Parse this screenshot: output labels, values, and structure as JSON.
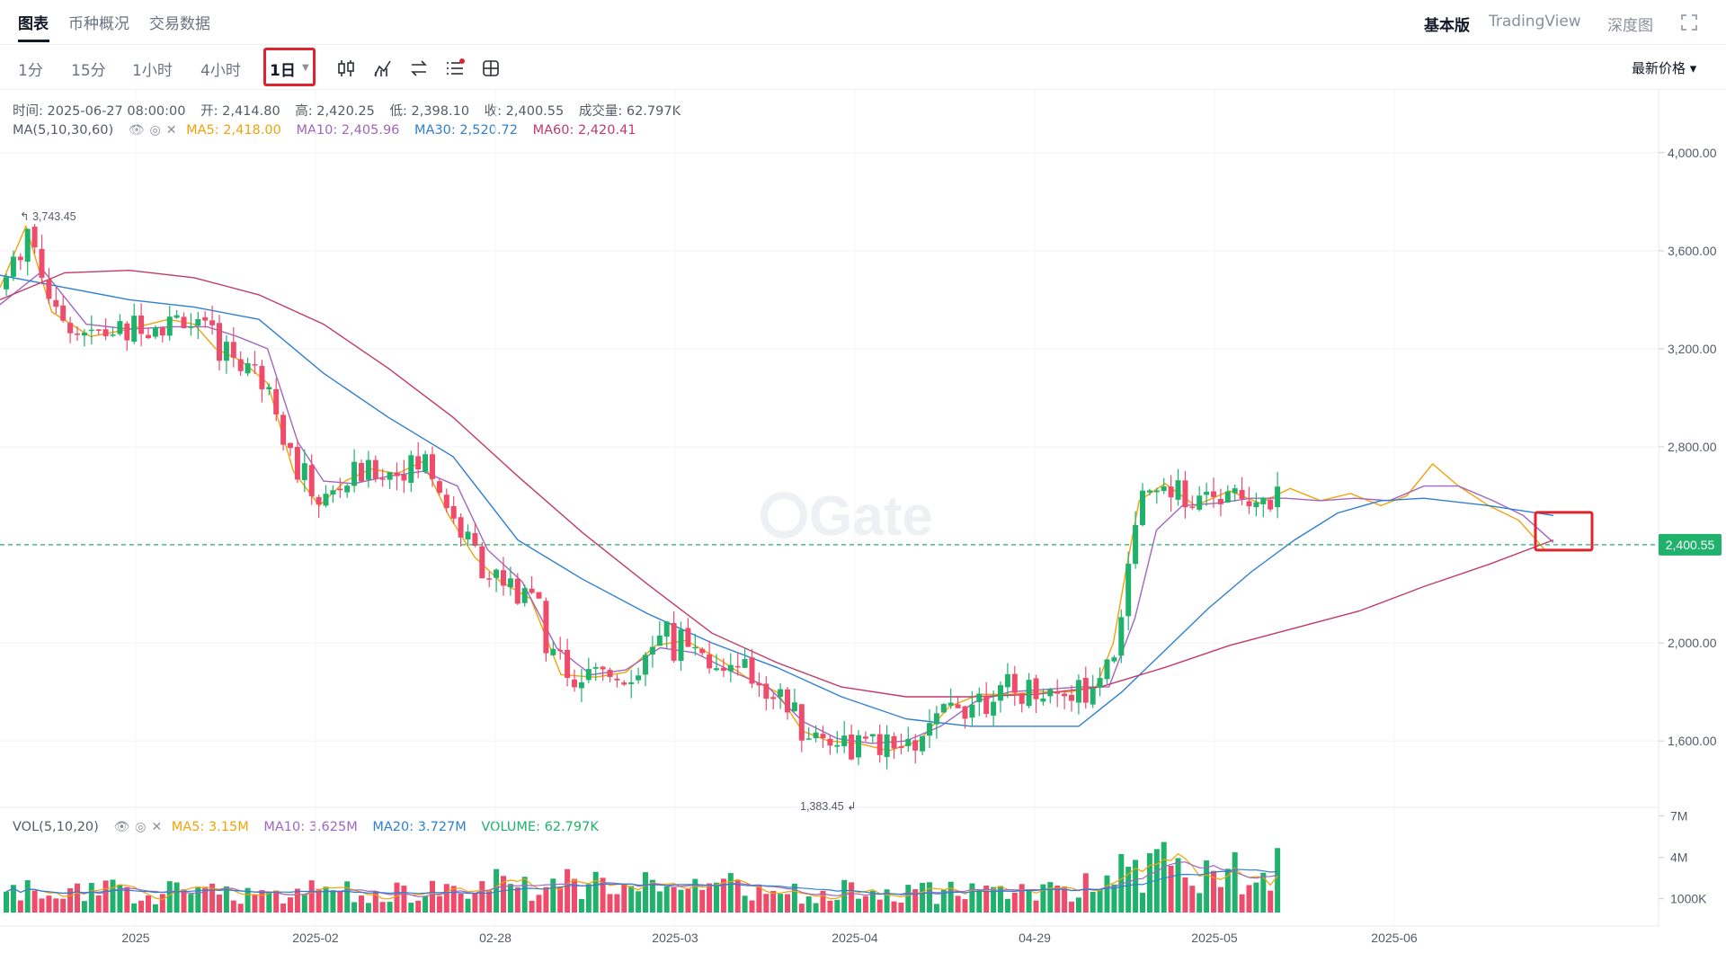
{
  "top_tabs": [
    {
      "label": "图表",
      "active": true
    },
    {
      "label": "币种概况",
      "active": false
    },
    {
      "label": "交易数据",
      "active": false
    }
  ],
  "top_right": [
    {
      "label": "基本版",
      "active": true
    },
    {
      "label": "TradingView",
      "active": false
    },
    {
      "label": "深度图",
      "active": false
    }
  ],
  "intervals": [
    {
      "label": "1分",
      "active": false
    },
    {
      "label": "15分",
      "active": false
    },
    {
      "label": "1小时",
      "active": false
    },
    {
      "label": "4小时",
      "active": false
    },
    {
      "label": "1日",
      "active": true
    }
  ],
  "interval_caret": "▼",
  "price_mode": "最新价格 ▾",
  "ohlc": {
    "time": "时间: 2025-06-27 08:00:00",
    "open": "开: 2,414.80",
    "high": "高: 2,420.25",
    "low": "低: 2,398.10",
    "close": "收: 2,400.55",
    "volume": "成交量: 62.797K"
  },
  "ma_legend": {
    "label": "MA(5,10,30,60)",
    "ma5": "MA5: 2,418.00",
    "ma10": "MA10: 2,405.96",
    "ma30": "MA30: 2,520.72",
    "ma60": "MA60: 2,420.41"
  },
  "vol_legend": {
    "label": "VOL(5,10,20)",
    "ma5": "MA5: 3.15M",
    "ma10": "MA10: 3.625M",
    "ma20": "MA20: 3.727M",
    "volume": "VOLUME: 62.797K"
  },
  "colors": {
    "up": "#20b26c",
    "down": "#ef4b6b",
    "ma5": "#f0a30a",
    "ma10": "#a066c0",
    "ma30": "#2f7fd1",
    "ma60": "#c13a6a",
    "last_price": "#20b26c",
    "highlight": "#e0242f"
  },
  "chart_data": {
    "type": "candlestick",
    "price_axis_ticks": [
      "4,000.00",
      "3,600.00",
      "3,200.00",
      "2,800.00",
      "2,000.00",
      "1,600.00"
    ],
    "price_axis_values": [
      4000,
      3600,
      3200,
      2800,
      2000,
      1600
    ],
    "volume_axis_ticks": [
      "7M",
      "4M",
      "1000K"
    ],
    "volume_axis_values": [
      7,
      4,
      1
    ],
    "x_axis_labels": [
      "2025",
      "2025-02",
      "02-28",
      "2025-03",
      "2025-04",
      "04-29",
      "2025-05",
      "2025-06"
    ],
    "last_price": 2400.55,
    "last_price_label": "2,400.55",
    "max_marker": {
      "value": 3743.45,
      "label": "3,743.45"
    },
    "min_marker": {
      "value": 1383.45,
      "label": "1,383.45"
    },
    "ylim": [
      1340,
      4080
    ],
    "vol_ylim": [
      0,
      7.5
    ],
    "ma_series": [
      {
        "name": "MA5",
        "points": [
          [
            0,
            3450
          ],
          [
            12,
            3700
          ],
          [
            24,
            3350
          ],
          [
            42,
            3250
          ],
          [
            60,
            3280
          ],
          [
            78,
            3320
          ],
          [
            90,
            3300
          ],
          [
            100,
            3200
          ],
          [
            112,
            3150
          ],
          [
            124,
            3060
          ],
          [
            136,
            2700
          ],
          [
            148,
            2560
          ],
          [
            160,
            2660
          ],
          [
            172,
            2710
          ],
          [
            184,
            2690
          ],
          [
            196,
            2740
          ],
          [
            208,
            2520
          ],
          [
            220,
            2350
          ],
          [
            232,
            2250
          ],
          [
            246,
            2180
          ],
          [
            260,
            1870
          ],
          [
            276,
            1860
          ],
          [
            290,
            1880
          ],
          [
            304,
            1990
          ],
          [
            318,
            2010
          ],
          [
            332,
            1940
          ],
          [
            346,
            1860
          ],
          [
            360,
            1800
          ],
          [
            372,
            1640
          ],
          [
            384,
            1600
          ],
          [
            398,
            1590
          ],
          [
            412,
            1560
          ],
          [
            426,
            1600
          ],
          [
            440,
            1740
          ],
          [
            454,
            1790
          ],
          [
            468,
            1790
          ],
          [
            482,
            1800
          ],
          [
            496,
            1800
          ],
          [
            508,
            1820
          ],
          [
            516,
            2000
          ],
          [
            522,
            2300
          ],
          [
            528,
            2580
          ],
          [
            540,
            2650
          ],
          [
            554,
            2560
          ],
          [
            570,
            2620
          ],
          [
            584,
            2570
          ],
          [
            598,
            2630
          ],
          [
            612,
            2580
          ],
          [
            626,
            2610
          ],
          [
            640,
            2560
          ],
          [
            652,
            2600
          ],
          [
            664,
            2730
          ],
          [
            676,
            2640
          ],
          [
            690,
            2560
          ],
          [
            704,
            2500
          ],
          [
            716,
            2380
          ],
          [
            720,
            2380
          ]
        ]
      },
      {
        "name": "MA10",
        "points": [
          [
            0,
            3380
          ],
          [
            20,
            3520
          ],
          [
            40,
            3300
          ],
          [
            60,
            3280
          ],
          [
            80,
            3290
          ],
          [
            96,
            3290
          ],
          [
            110,
            3250
          ],
          [
            124,
            3200
          ],
          [
            138,
            2820
          ],
          [
            150,
            2660
          ],
          [
            164,
            2650
          ],
          [
            180,
            2680
          ],
          [
            196,
            2700
          ],
          [
            212,
            2640
          ],
          [
            226,
            2380
          ],
          [
            242,
            2250
          ],
          [
            258,
            1980
          ],
          [
            274,
            1870
          ],
          [
            290,
            1890
          ],
          [
            306,
            1980
          ],
          [
            322,
            1960
          ],
          [
            340,
            1880
          ],
          [
            356,
            1820
          ],
          [
            372,
            1680
          ],
          [
            388,
            1610
          ],
          [
            404,
            1590
          ],
          [
            420,
            1600
          ],
          [
            436,
            1660
          ],
          [
            452,
            1760
          ],
          [
            468,
            1800
          ],
          [
            484,
            1810
          ],
          [
            500,
            1820
          ],
          [
            514,
            1820
          ],
          [
            526,
            2100
          ],
          [
            536,
            2460
          ],
          [
            548,
            2560
          ],
          [
            564,
            2570
          ],
          [
            580,
            2590
          ],
          [
            596,
            2590
          ],
          [
            612,
            2580
          ],
          [
            628,
            2590
          ],
          [
            644,
            2580
          ],
          [
            660,
            2640
          ],
          [
            676,
            2640
          ],
          [
            692,
            2580
          ],
          [
            706,
            2520
          ],
          [
            720,
            2410
          ]
        ]
      },
      {
        "name": "MA30",
        "points": [
          [
            0,
            3500
          ],
          [
            30,
            3450
          ],
          [
            60,
            3400
          ],
          [
            90,
            3370
          ],
          [
            120,
            3320
          ],
          [
            150,
            3100
          ],
          [
            180,
            2920
          ],
          [
            210,
            2760
          ],
          [
            240,
            2420
          ],
          [
            270,
            2260
          ],
          [
            300,
            2120
          ],
          [
            330,
            2000
          ],
          [
            360,
            1900
          ],
          [
            390,
            1780
          ],
          [
            420,
            1690
          ],
          [
            450,
            1660
          ],
          [
            480,
            1660
          ],
          [
            500,
            1660
          ],
          [
            520,
            1800
          ],
          [
            540,
            1970
          ],
          [
            560,
            2140
          ],
          [
            580,
            2290
          ],
          [
            600,
            2420
          ],
          [
            620,
            2530
          ],
          [
            640,
            2580
          ],
          [
            660,
            2590
          ],
          [
            690,
            2560
          ],
          [
            720,
            2520
          ]
        ]
      },
      {
        "name": "MA60",
        "points": [
          [
            0,
            3400
          ],
          [
            30,
            3510
          ],
          [
            60,
            3520
          ],
          [
            90,
            3490
          ],
          [
            120,
            3420
          ],
          [
            150,
            3300
          ],
          [
            180,
            3120
          ],
          [
            210,
            2920
          ],
          [
            240,
            2680
          ],
          [
            270,
            2450
          ],
          [
            300,
            2240
          ],
          [
            330,
            2040
          ],
          [
            360,
            1920
          ],
          [
            390,
            1820
          ],
          [
            420,
            1780
          ],
          [
            450,
            1780
          ],
          [
            480,
            1790
          ],
          [
            510,
            1820
          ],
          [
            540,
            1900
          ],
          [
            570,
            1990
          ],
          [
            600,
            2060
          ],
          [
            630,
            2130
          ],
          [
            660,
            2230
          ],
          [
            690,
            2320
          ],
          [
            720,
            2420
          ]
        ]
      }
    ]
  }
}
